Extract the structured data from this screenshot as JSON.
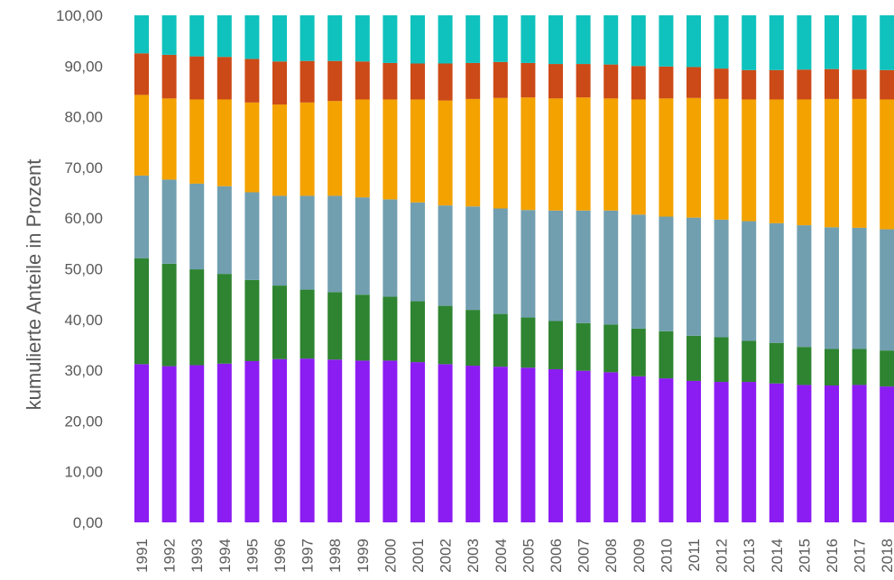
{
  "chart_data": {
    "type": "bar",
    "stacked": true,
    "title": "",
    "xlabel": "",
    "ylabel": "kumulierte Anteile in Prozent",
    "ylim": [
      0,
      100
    ],
    "yticks": [
      "0,00",
      "10,00",
      "20,00",
      "30,00",
      "40,00",
      "50,00",
      "60,00",
      "70,00",
      "80,00",
      "90,00",
      "100,00"
    ],
    "grid": false,
    "legend": "none",
    "categories": [
      "1991",
      "1992",
      "1993",
      "1994",
      "1995",
      "1996",
      "1997",
      "1998",
      "1999",
      "2000",
      "2001",
      "2002",
      "2003",
      "2004",
      "2005",
      "2006",
      "2007",
      "2008",
      "2009",
      "2010",
      "2011",
      "2012",
      "2013",
      "2014",
      "2015",
      "2016",
      "2017",
      "2018"
    ],
    "series": [
      {
        "color": "#8B1CF2",
        "values": [
          31.2,
          30.8,
          31.0,
          31.3,
          31.8,
          32.2,
          32.3,
          32.1,
          31.9,
          31.9,
          31.6,
          31.2,
          30.9,
          30.7,
          30.5,
          30.2,
          29.9,
          29.6,
          28.8,
          28.4,
          27.9,
          27.7,
          27.7,
          27.4,
          27.1,
          27.0,
          27.1,
          26.8
        ]
      },
      {
        "color": "#2E8431",
        "values": [
          20.9,
          20.2,
          18.9,
          17.7,
          16.0,
          14.5,
          13.6,
          13.3,
          13.0,
          12.6,
          12.0,
          11.5,
          11.0,
          10.4,
          9.9,
          9.5,
          9.4,
          9.4,
          9.4,
          9.3,
          8.9,
          8.8,
          8.1,
          8.0,
          7.5,
          7.2,
          7.1,
          7.1
        ]
      },
      {
        "color": "#719FB0",
        "values": [
          16.3,
          16.6,
          16.9,
          17.3,
          17.3,
          17.7,
          18.5,
          19.0,
          19.2,
          19.2,
          19.5,
          19.8,
          20.4,
          20.8,
          21.2,
          21.8,
          22.2,
          22.5,
          22.5,
          22.6,
          23.3,
          23.2,
          23.6,
          23.6,
          24.0,
          24.0,
          23.9,
          23.9
        ]
      },
      {
        "color": "#F3A200",
        "values": [
          15.9,
          16.0,
          16.6,
          17.1,
          17.7,
          18.0,
          18.4,
          18.7,
          19.3,
          19.7,
          20.3,
          20.7,
          21.2,
          21.8,
          22.2,
          22.1,
          22.3,
          22.1,
          22.7,
          23.3,
          23.6,
          23.8,
          24.0,
          24.4,
          24.8,
          25.3,
          25.4,
          25.6
        ]
      },
      {
        "color": "#CC4A17",
        "values": [
          8.2,
          8.6,
          8.5,
          8.4,
          8.6,
          8.5,
          8.2,
          7.9,
          7.5,
          7.2,
          7.1,
          7.3,
          7.1,
          7.1,
          6.8,
          6.8,
          6.6,
          6.7,
          6.6,
          6.3,
          6.1,
          6.0,
          5.8,
          5.8,
          5.9,
          5.9,
          5.8,
          5.8
        ]
      },
      {
        "color": "#10C2BD",
        "values": [
          7.5,
          7.8,
          8.1,
          8.2,
          8.6,
          9.1,
          9.0,
          9.0,
          9.1,
          9.4,
          9.5,
          9.5,
          9.4,
          9.2,
          9.4,
          9.6,
          9.6,
          9.7,
          10.0,
          10.1,
          10.2,
          10.5,
          10.8,
          10.8,
          10.7,
          10.6,
          10.7,
          10.8
        ]
      }
    ]
  }
}
